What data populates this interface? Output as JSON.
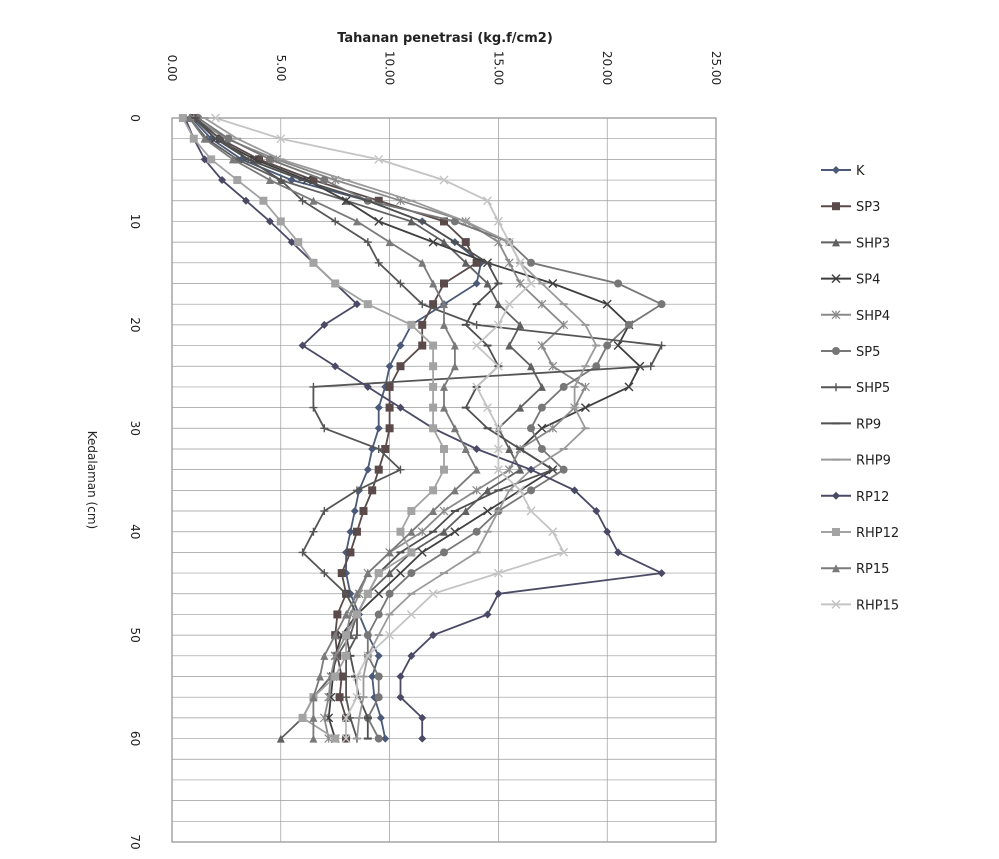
{
  "chart_data": {
    "type": "line",
    "title": "Tahanan penetrasi (kg.f/cm2)",
    "xlabel": "Tahanan penetrasi (kg.f/cm2)",
    "ylabel": "Kedalaman (cm)",
    "xlim": [
      0,
      25
    ],
    "ylim": [
      0,
      70
    ],
    "x_ticks": [
      "0.00",
      "5.00",
      "10.00",
      "15.00",
      "20.00",
      "25.00"
    ],
    "y_ticks": [
      "0",
      "10",
      "20",
      "30",
      "40",
      "50",
      "60",
      "70"
    ],
    "x_axis_position": "top",
    "y_axis_inverted": true,
    "grid": true,
    "legend_position": "right",
    "depth": [
      0,
      2,
      4,
      6,
      8,
      10,
      12,
      14,
      16,
      18,
      20,
      22,
      24,
      26,
      28,
      30,
      32,
      34,
      36,
      38,
      40,
      42,
      44,
      46,
      48,
      50,
      52,
      54,
      56,
      58,
      60
    ],
    "series": [
      {
        "name": "K",
        "color": "#4a5a78",
        "marker": "diamond",
        "values": [
          0.9,
          1.8,
          3.2,
          5.5,
          9.0,
          11.5,
          13.0,
          14.2,
          14.0,
          12.5,
          11.0,
          10.5,
          10.0,
          9.8,
          9.5,
          9.5,
          9.2,
          9.0,
          8.6,
          8.4,
          8.2,
          8.0,
          8.0,
          8.2,
          8.6,
          9.0,
          9.5,
          9.2,
          9.3,
          9.6,
          9.8
        ]
      },
      {
        "name": "SP3",
        "color": "#5a4a4a",
        "marker": "square",
        "values": [
          1.0,
          2.2,
          4.0,
          6.5,
          9.5,
          12.5,
          13.5,
          14.0,
          12.5,
          12.0,
          11.5,
          11.5,
          10.5,
          10.0,
          10.0,
          10.0,
          9.8,
          9.5,
          9.2,
          8.8,
          8.5,
          8.2,
          7.8,
          8.0,
          7.6,
          7.5,
          7.6,
          7.8,
          7.7,
          8.0,
          8.0
        ]
      },
      {
        "name": "SHP3",
        "color": "#606060",
        "marker": "triangle",
        "values": [
          0.8,
          1.6,
          3.0,
          5.0,
          8.0,
          11.0,
          12.5,
          13.5,
          14.5,
          15.0,
          16.0,
          15.5,
          16.5,
          17.0,
          16.0,
          15.0,
          15.5,
          16.0,
          14.5,
          13.5,
          12.5,
          11.0,
          10.0,
          9.0,
          8.5,
          8.2,
          7.6,
          7.3,
          6.5,
          6.0,
          5.0
        ]
      },
      {
        "name": "SP4",
        "color": "#3f3f3f",
        "marker": "x",
        "values": [
          1.0,
          2.0,
          3.8,
          6.2,
          8.0,
          9.5,
          12.0,
          14.5,
          17.5,
          20.0,
          21.0,
          20.5,
          21.5,
          21.0,
          19.0,
          17.0,
          16.0,
          17.5,
          16.0,
          14.5,
          13.0,
          11.5,
          10.5,
          9.5,
          8.5,
          7.8,
          7.5,
          7.4,
          7.3,
          7.2,
          7.5
        ]
      },
      {
        "name": "SHP4",
        "color": "#8a8a8a",
        "marker": "asterisk",
        "values": [
          1.0,
          2.5,
          4.8,
          7.5,
          10.5,
          13.5,
          15.0,
          15.5,
          16.0,
          17.0,
          18.0,
          17.0,
          17.5,
          19.0,
          18.5,
          17.5,
          16.0,
          15.5,
          14.0,
          12.5,
          11.5,
          10.0,
          9.0,
          8.6,
          8.2,
          8.0,
          7.5,
          7.3,
          7.2,
          7.0,
          7.2
        ]
      },
      {
        "name": "SP5",
        "color": "#777777",
        "marker": "circle",
        "values": [
          1.2,
          2.6,
          4.5,
          7.0,
          9.0,
          13.0,
          15.5,
          16.5,
          20.5,
          22.5,
          21.0,
          20.0,
          19.5,
          18.0,
          17.0,
          16.5,
          17.0,
          18.0,
          16.5,
          15.0,
          14.0,
          12.5,
          11.0,
          10.0,
          9.5,
          9.0,
          9.0,
          9.5,
          9.5,
          9.0,
          9.5
        ]
      },
      {
        "name": "SHP5",
        "color": "#555555",
        "marker": "plus",
        "values": [
          1.1,
          2.2,
          3.5,
          5.0,
          6.0,
          7.5,
          9.0,
          9.5,
          10.5,
          11.5,
          14.0,
          22.5,
          22.0,
          6.5,
          6.5,
          7.0,
          9.5,
          10.5,
          8.5,
          7.0,
          6.5,
          6.0,
          7.0,
          8.0,
          8.5,
          8.5,
          8.0,
          8.0,
          8.0,
          8.2,
          8.5
        ]
      },
      {
        "name": "RP9",
        "color": "#4f4f4f",
        "marker": "dash",
        "values": [
          1.0,
          2.0,
          3.5,
          6.0,
          9.0,
          11.5,
          13.0,
          14.5,
          15.0,
          14.0,
          13.5,
          14.5,
          15.0,
          14.0,
          13.5,
          14.5,
          16.0,
          17.5,
          15.0,
          13.0,
          12.0,
          10.5,
          9.5,
          9.0,
          8.5,
          8.0,
          8.2,
          8.4,
          8.6,
          9.0,
          9.0
        ]
      },
      {
        "name": "RHP9",
        "color": "#9a9a9a",
        "marker": "dash",
        "values": [
          1.5,
          3.0,
          5.0,
          8.0,
          11.0,
          13.5,
          15.5,
          16.0,
          17.0,
          18.0,
          19.0,
          19.5,
          19.0,
          18.5,
          18.5,
          19.0,
          18.0,
          16.5,
          15.5,
          15.0,
          14.5,
          14.0,
          12.5,
          11.0,
          10.0,
          9.5,
          9.0,
          8.8,
          8.8,
          8.6,
          8.5
        ]
      },
      {
        "name": "RP12",
        "color": "#4a4a66",
        "marker": "diamond",
        "values": [
          0.6,
          1.0,
          1.5,
          2.3,
          3.4,
          4.5,
          5.5,
          6.5,
          7.5,
          8.5,
          7.0,
          6.0,
          7.5,
          9.0,
          10.5,
          12.0,
          14.0,
          16.5,
          18.5,
          19.5,
          20.0,
          20.5,
          22.5,
          15.0,
          14.5,
          12.0,
          11.0,
          10.5,
          10.5,
          11.5,
          11.5
        ]
      },
      {
        "name": "RHP12",
        "color": "#a3a3a3",
        "marker": "square",
        "values": [
          0.5,
          1.0,
          1.8,
          3.0,
          4.2,
          5.0,
          5.8,
          6.5,
          7.5,
          9.0,
          11.0,
          12.0,
          12.0,
          12.0,
          12.0,
          12.0,
          12.5,
          12.5,
          12.0,
          11.0,
          10.5,
          11.0,
          9.5,
          9.0,
          8.5,
          8.0,
          8.0,
          7.5,
          6.5,
          6.0,
          7.5
        ]
      },
      {
        "name": "RP15",
        "color": "#7a7a7a",
        "marker": "triangle",
        "values": [
          0.8,
          1.5,
          2.8,
          4.5,
          6.5,
          8.5,
          10.0,
          11.5,
          12.0,
          12.5,
          12.5,
          13.0,
          13.0,
          12.5,
          12.5,
          13.0,
          13.5,
          14.0,
          13.0,
          12.0,
          11.0,
          10.0,
          9.0,
          8.5,
          8.0,
          7.5,
          7.0,
          6.8,
          6.5,
          6.5,
          6.5
        ]
      },
      {
        "name": "RHP15",
        "color": "#c4c4c4",
        "marker": "x",
        "values": [
          2.0,
          5.0,
          9.5,
          12.5,
          14.5,
          15.0,
          15.5,
          16.0,
          16.5,
          15.5,
          15.0,
          14.0,
          15.0,
          14.0,
          14.5,
          15.0,
          15.0,
          15.0,
          16.0,
          16.5,
          17.5,
          18.0,
          15.0,
          12.0,
          11.0,
          10.0,
          9.0,
          8.5,
          8.5,
          8.0,
          8.0
        ]
      }
    ]
  }
}
